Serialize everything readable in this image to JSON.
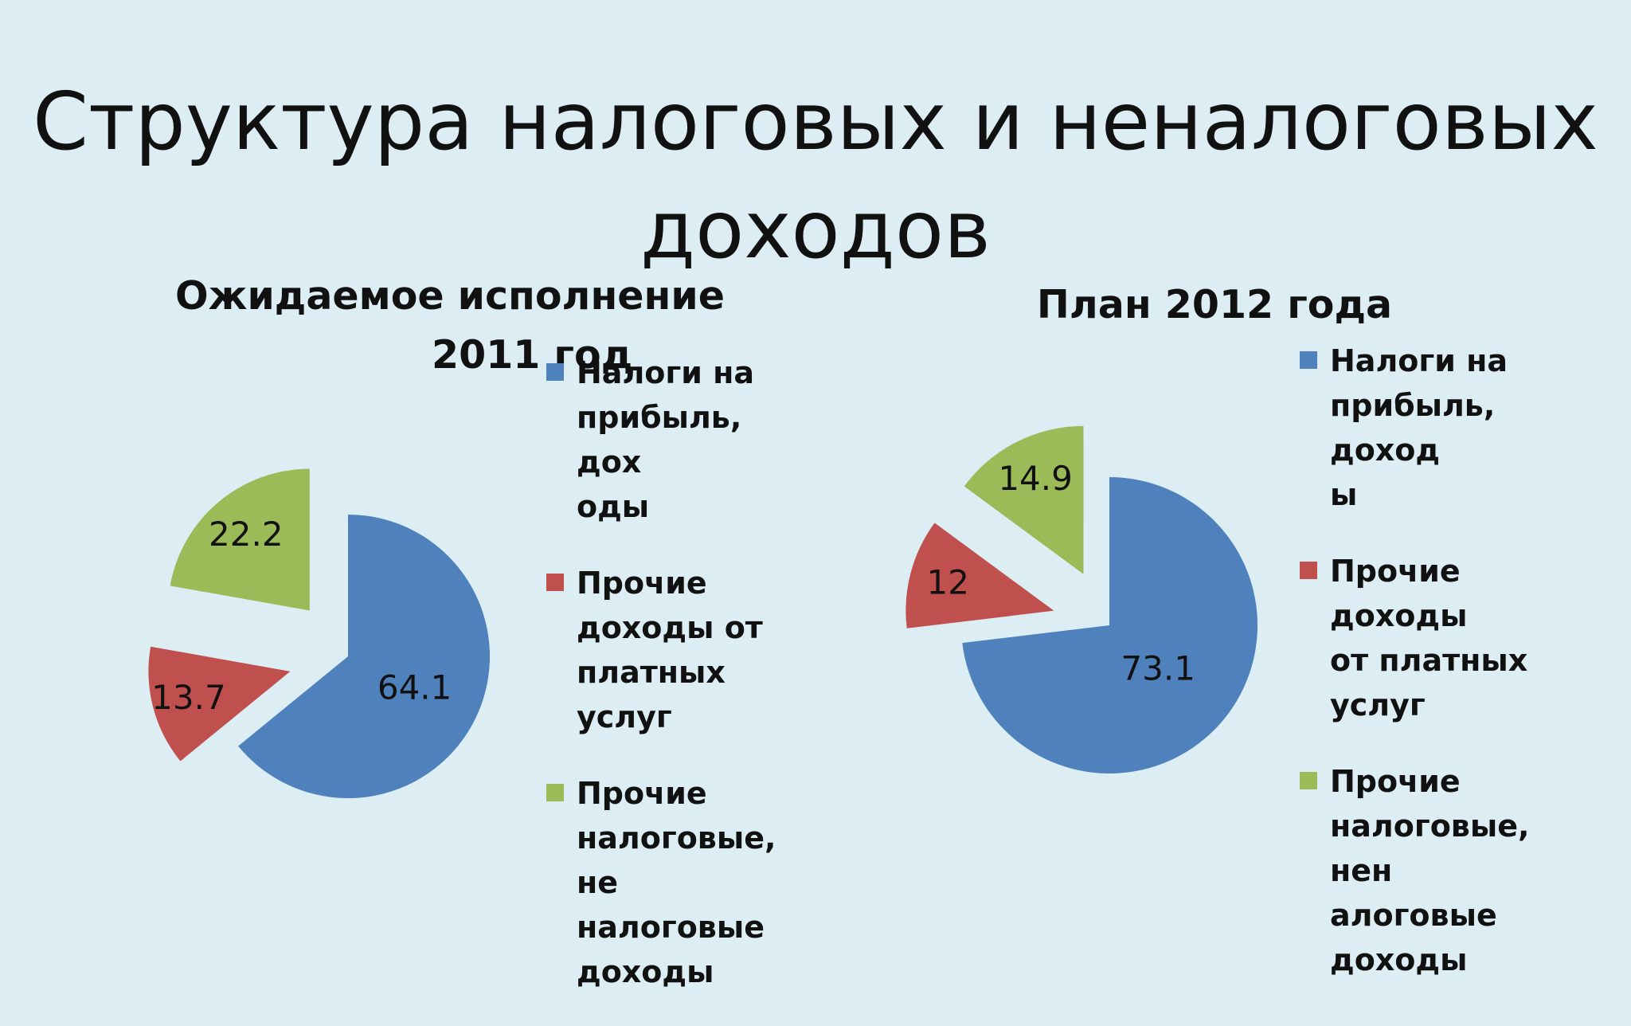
{
  "title_lines": [
    "Структура налоговых и неналоговых",
    "доходов"
  ],
  "colors": {
    "blue": "#4F81BD",
    "red": "#C0504D",
    "green": "#9BBB59"
  },
  "chart_data": [
    {
      "type": "pie",
      "title_lines": [
        "Ожидаемое исполнение",
        "2011 год"
      ],
      "legend": [
        "Налоги на прибыль, доходы",
        "Прочие доходы от платных услуг",
        "Прочие налоговые, неналоговые доходы"
      ],
      "legend_lines": [
        [
          "Налоги на",
          "прибыль, дох",
          "оды"
        ],
        [
          "Прочие",
          "доходы от",
          "платных услуг"
        ],
        [
          "Прочие",
          "налоговые, не",
          "налоговые",
          "доходы"
        ]
      ],
      "values": [
        64.1,
        13.7,
        22.2
      ],
      "value_labels": [
        "64.1",
        "13.7",
        "22.2"
      ],
      "exploded": true,
      "legend_position": "right"
    },
    {
      "type": "pie",
      "title_lines": [
        "План 2012 года"
      ],
      "legend": [
        "Налоги на прибыль, доходы",
        "Прочие доходы от платных услуг",
        "Прочие налоговые, неналоговые доходы"
      ],
      "legend_lines": [
        [
          "Налоги на",
          "прибыль, доход",
          "ы"
        ],
        [
          "Прочие доходы",
          "от платных",
          "услуг"
        ],
        [
          "Прочие",
          "налоговые, нен",
          "алоговые",
          "доходы"
        ]
      ],
      "values": [
        73.1,
        12,
        14.9
      ],
      "value_labels": [
        "73.1",
        "12",
        "14.9"
      ],
      "exploded": true,
      "legend_position": "right"
    }
  ]
}
